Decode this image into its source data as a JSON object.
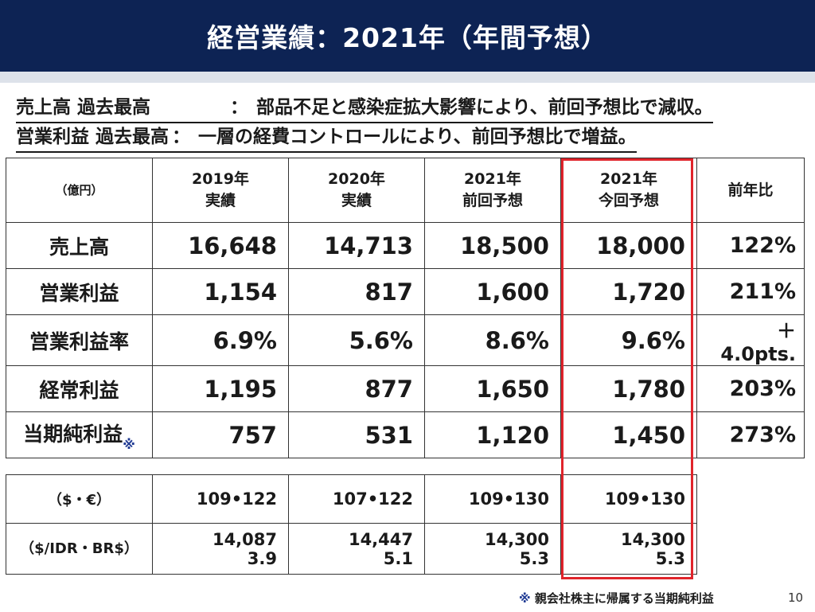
{
  "header": {
    "title": "経営業績：2021年（年間予想）"
  },
  "summary": {
    "line1": {
      "head": "売上高 過去最高",
      "sep": "：",
      "text": "部品不足と感染症拡大影響により、前回予想比で減収。"
    },
    "line2": {
      "head": "営業利益 過去最高",
      "sep": "：",
      "text": "一層の経費コントロールにより、前回予想比で増益。"
    }
  },
  "table": {
    "unit": "（億円）",
    "columns": [
      {
        "line1": "2019年",
        "line2": "実績"
      },
      {
        "line1": "2020年",
        "line2": "実績"
      },
      {
        "line1": "2021年",
        "line2": "前回予想"
      },
      {
        "line1": "2021年",
        "line2": "今回予想"
      }
    ],
    "yoy_header": "前年比",
    "rows": [
      {
        "label": "売上高",
        "mark": "",
        "values": [
          "16,648",
          "14,713",
          "18,500",
          "18,000"
        ],
        "yoy": "122%"
      },
      {
        "label": "営業利益",
        "mark": "",
        "values": [
          "1,154",
          "817",
          "1,600",
          "1,720"
        ],
        "yoy": "211%"
      },
      {
        "label": "営業利益率",
        "mark": "",
        "values": [
          "6.9%",
          "5.6%",
          "8.6%",
          "9.6%"
        ],
        "yoy": "＋4.0pts."
      },
      {
        "label": "経常利益",
        "mark": "",
        "values": [
          "1,195",
          "877",
          "1,650",
          "1,780"
        ],
        "yoy": "203%"
      },
      {
        "label": "当期純利益",
        "mark": "※",
        "values": [
          "757",
          "531",
          "1,120",
          "1,450"
        ],
        "yoy": "273%"
      }
    ]
  },
  "fx": {
    "row1": {
      "label": "（$・€）",
      "values": [
        "109•122",
        "107•122",
        "109•130",
        "109•130"
      ]
    },
    "row2": {
      "label": "（$/IDR・BR$）",
      "values": [
        {
          "a": "14,087",
          "b": "3.9"
        },
        {
          "a": "14,447",
          "b": "5.1"
        },
        {
          "a": "14,300",
          "b": "5.3"
        },
        {
          "a": "14,300",
          "b": "5.3"
        }
      ]
    }
  },
  "footnote": {
    "mark": "※",
    "text": " 親会社株主に帰属する当期純利益"
  },
  "page": {
    "number": "10"
  },
  "colors": {
    "header_bg": "#0d2354",
    "highlight": "#e0242b",
    "footnote_mark": "#1f3a93"
  }
}
